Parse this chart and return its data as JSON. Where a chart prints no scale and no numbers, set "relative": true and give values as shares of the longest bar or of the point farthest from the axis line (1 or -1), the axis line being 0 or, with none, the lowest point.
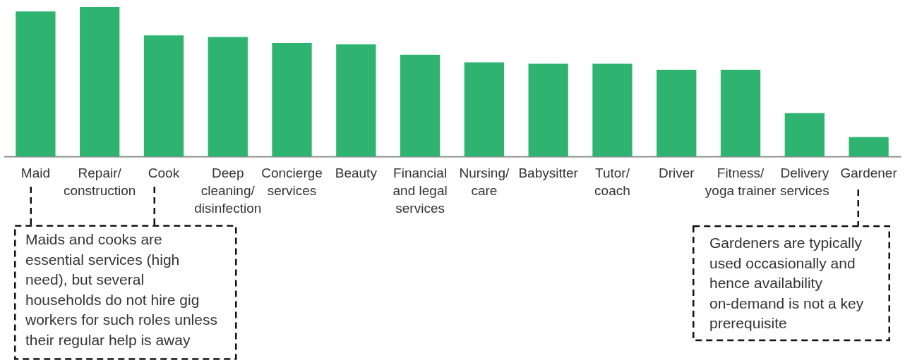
{
  "chart_data": {
    "type": "bar",
    "relative": true,
    "color": "#2eb470",
    "categories": [
      "Maid",
      "Repair/\nconstruction",
      "Cook",
      "Deep\ncleaning/\ndisinfection",
      "Concierge\nservices",
      "Beauty",
      "Financial\nand legal\nservices",
      "Nursing/\ncare",
      "Babysitter",
      "Tutor/\ncoach",
      "Driver",
      "Fitness/\nyoga trainer",
      "Delivery\nservices",
      "Gardener"
    ],
    "values": [
      0.97,
      1,
      0.81,
      0.8,
      0.76,
      0.75,
      0.68,
      0.63,
      0.62,
      0.62,
      0.58,
      0.58,
      0.29,
      0.13
    ],
    "annotations": [
      "Maids and cooks are\nessential services (high\nneed), but several\nhouseholds do not hire gig\nworkers for such roles unless\ntheir regular help is away",
      "Gardeners are typically\nused occasionally and\nhence availability\non-demand is not a key\nprerequisite"
    ]
  }
}
